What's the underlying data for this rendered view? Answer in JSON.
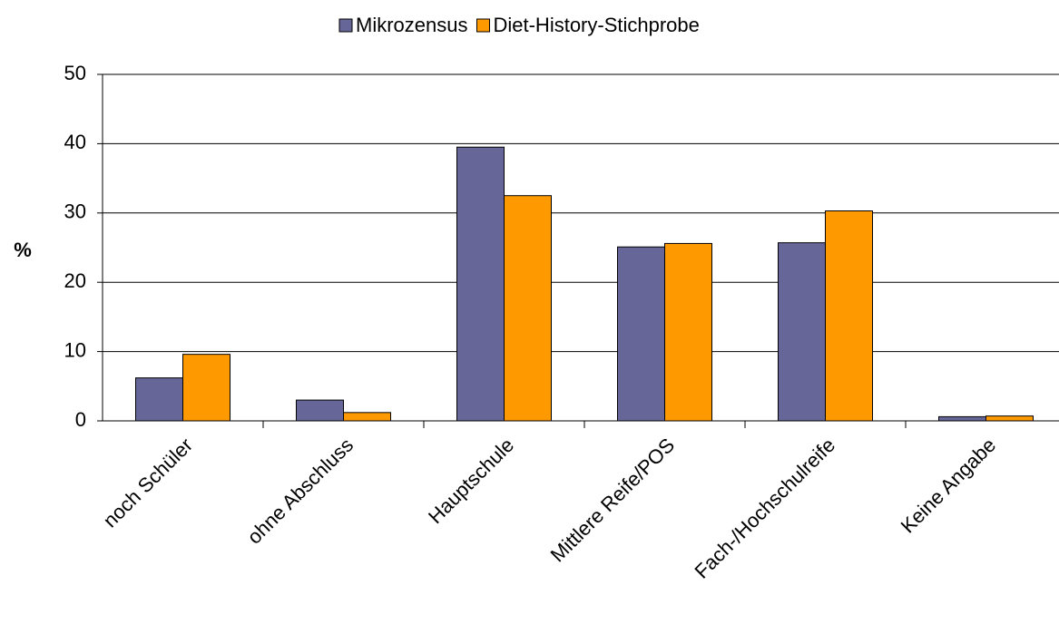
{
  "chart_data": {
    "type": "bar",
    "y_label": "%",
    "categories": [
      "noch Schüler",
      "ohne Abschluss",
      "Hauptschule",
      "Mittlere Reife/POS",
      "Fach-/Hochschulreife",
      "Keine Angabe"
    ],
    "series": [
      {
        "name": "Mikrozensus",
        "color": "#666699",
        "values": [
          6.2,
          3.0,
          39.5,
          25.1,
          25.7,
          0.6
        ]
      },
      {
        "name": "Diet-History-Stichprobe",
        "color": "#ff9900",
        "values": [
          9.6,
          1.2,
          32.5,
          25.6,
          30.3,
          0.7
        ]
      }
    ],
    "ylim": [
      0,
      50
    ],
    "yticks": [
      0,
      10,
      20,
      30,
      40,
      50
    ],
    "grid": true,
    "legend": "top"
  }
}
